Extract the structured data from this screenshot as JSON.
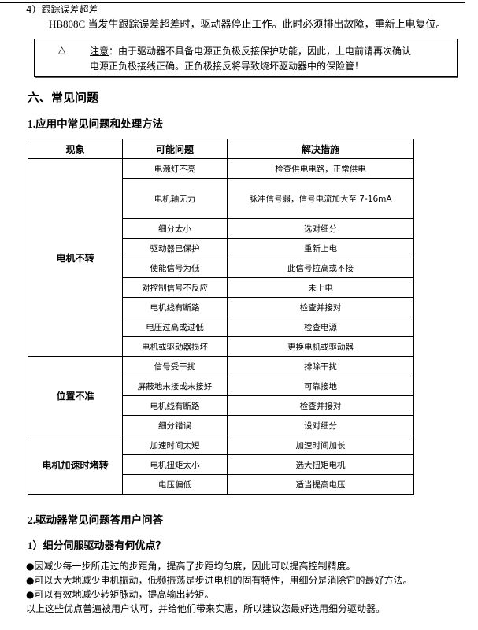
{
  "top": {
    "item_title": "4）跟踪误差超差",
    "item_text": "HB808C 当发生跟踪误差超差时，驱动器停止工作。此时必须排出故障，重新上电复位。"
  },
  "note": {
    "icon": "warning-triangle-icon",
    "label": "注意",
    "line1": "：由于驱动器不具备电源正负极反接保护功能，因此，上电前请再次确认",
    "line2": "电源正负极接线正确。正负极接反将导致烧坏驱动器中的保险管！"
  },
  "section6": {
    "title": "六、常见问题",
    "sub1": "1.应用中常见问题和处理方法"
  },
  "table": {
    "headers": [
      "现象",
      "可能问题",
      "解决措施"
    ],
    "groups": [
      {
        "symptom": "电机不转",
        "rows": [
          [
            "电源灯不亮",
            "检查供电电路，正常供电"
          ],
          [
            "电机轴无力",
            "脉冲信号弱，信号电流加大至 7-16mA"
          ],
          [
            "细分太小",
            "选对细分"
          ],
          [
            "驱动器已保护",
            "重新上电"
          ],
          [
            "使能信号为低",
            "此信号拉高或不接"
          ],
          [
            "对控制信号不反应",
            "未上电"
          ],
          [
            "电机线有断路",
            "检查并接对"
          ],
          [
            "电压过高或过低",
            "检查电源"
          ],
          [
            "电机或驱动器损坏",
            "更换电机或驱动器"
          ]
        ]
      },
      {
        "symptom": "位置不准",
        "rows": [
          [
            "信号受干扰",
            "排除干扰"
          ],
          [
            "屏蔽地未接或未接好",
            "可靠接地"
          ],
          [
            "电机线有断路",
            "检查并接对"
          ],
          [
            "细分错误",
            "设对细分"
          ]
        ]
      },
      {
        "symptom": "电机加速时堵转",
        "rows": [
          [
            "加速时间太短",
            "加速时间加长"
          ],
          [
            "电机扭矩太小",
            "选大扭矩电机"
          ],
          [
            "电压偏低",
            "适当提高电压"
          ]
        ]
      }
    ]
  },
  "section2": {
    "title": "2.驱动器常见问题答用户问答",
    "q1": "1）细分伺服驱动器有何优点？",
    "bullets": [
      "●因减少每一步所走过的步距角，提高了步距均匀度，因此可以提高控制精度。",
      "●可以大大地减少电机振动，低频振荡是步进电机的固有特性，用细分是消除它的最好方法。",
      "●可以有效地减少转矩脉动，提高输出转矩。"
    ],
    "conclusion": "以上这些优点普遍被用户认可，并给他们带来实惠，所以建议您最好选用细分驱动器。"
  }
}
